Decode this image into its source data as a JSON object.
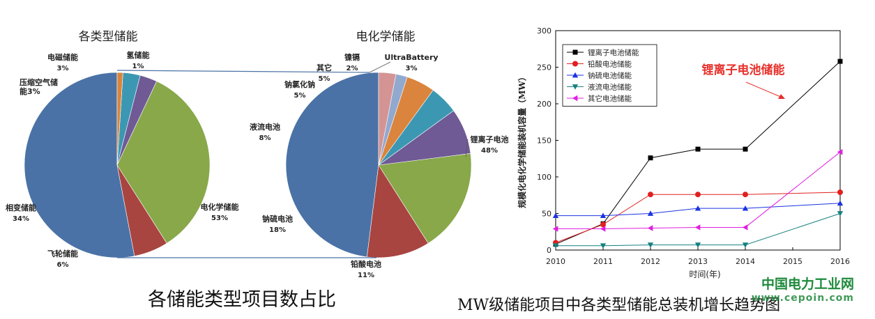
{
  "captions": {
    "left": "各储能类型项目数占比",
    "right": "MW级储能项目中各类型储能总装机增长趋势图"
  },
  "watermark": {
    "name": "中国电力工业网",
    "url": "www.cepoin.com"
  },
  "colors": {
    "blue": "#4A72A6",
    "red": "#A84541",
    "green": "#88A84A",
    "purple": "#6F5A96",
    "teal": "#3C98B2",
    "orange": "#DB843D",
    "lightblue": "#92A9CF",
    "pink": "#D49494",
    "connector": "#4A72A6",
    "annotation_red": "#E8302A"
  },
  "chart_data": [
    {
      "type": "pie",
      "title": "各类型储能",
      "slices": [
        {
          "label": "电化学储能",
          "value": 53,
          "text": "53%",
          "color": "#4A72A6"
        },
        {
          "label": "飞轮储能",
          "value": 6,
          "text": "6%",
          "color": "#A84541"
        },
        {
          "label": "相变储能",
          "value": 34,
          "text": "34%",
          "color": "#88A84A"
        },
        {
          "label": "压缩空气储能",
          "value": 3,
          "text": "3%",
          "color": "#6F5A96"
        },
        {
          "label": "电磁储能",
          "value": 3,
          "text": "3%",
          "color": "#3C98B2"
        },
        {
          "label": "氢储能",
          "value": 1,
          "text": "1%",
          "color": "#DB843D"
        }
      ]
    },
    {
      "type": "pie",
      "title": "电化学储能",
      "slices": [
        {
          "label": "锂离子电池",
          "value": 48,
          "text": "48%",
          "color": "#4A72A6"
        },
        {
          "label": "铅酸电池",
          "value": 11,
          "text": "11%",
          "color": "#A84541"
        },
        {
          "label": "钠硫电池",
          "value": 18,
          "text": "18%",
          "color": "#88A84A"
        },
        {
          "label": "液流电池",
          "value": 8,
          "text": "8%",
          "color": "#6F5A96"
        },
        {
          "label": "钠氯化钠",
          "value": 5,
          "text": "5%",
          "color": "#3C98B2"
        },
        {
          "label": "其它",
          "value": 5,
          "text": "5%",
          "color": "#DB843D"
        },
        {
          "label": "镍镉",
          "value": 2,
          "text": "2%",
          "color": "#92A9CF"
        },
        {
          "label": "UltraBattery",
          "value": 3,
          "text": "3%",
          "color": "#D49494"
        }
      ]
    },
    {
      "type": "line",
      "title": "",
      "xlabel": "时间(年)",
      "ylabel": "规模化电化学储能装机容量（MW）",
      "x": [
        2010,
        2011,
        2012,
        2013,
        2014,
        2015,
        2016
      ],
      "xlim": [
        2010,
        2016
      ],
      "ylim": [
        0,
        300
      ],
      "yticks": [
        0,
        50,
        100,
        150,
        200,
        250,
        300
      ],
      "legend_position": "top-left",
      "grid": false,
      "annotation": "锂离子电池储能",
      "series": [
        {
          "name": "锂离子电池储能",
          "marker": "square",
          "color": "#000000",
          "points": [
            [
              2010,
              8
            ],
            [
              2011,
              36
            ],
            [
              2012,
              126
            ],
            [
              2013,
              138
            ],
            [
              2014,
              138
            ],
            [
              2016,
              258
            ]
          ]
        },
        {
          "name": "铅酸电池储能",
          "marker": "circle",
          "color": "#E02020",
          "points": [
            [
              2010,
              10
            ],
            [
              2011,
              35
            ],
            [
              2012,
              76
            ],
            [
              2013,
              76
            ],
            [
              2014,
              76
            ],
            [
              2016,
              79
            ]
          ]
        },
        {
          "name": "钠硫电池储能",
          "marker": "triangle-up",
          "color": "#1A33E0",
          "points": [
            [
              2010,
              47
            ],
            [
              2011,
              47
            ],
            [
              2012,
              50
            ],
            [
              2013,
              57
            ],
            [
              2014,
              57
            ],
            [
              2016,
              64
            ]
          ]
        },
        {
          "name": "液流电池储能",
          "marker": "triangle-down",
          "color": "#178080",
          "points": [
            [
              2010,
              6
            ],
            [
              2011,
              6
            ],
            [
              2012,
              7
            ],
            [
              2013,
              7
            ],
            [
              2014,
              7
            ],
            [
              2016,
              50
            ]
          ]
        },
        {
          "name": "其它电池储能",
          "marker": "triangle-left",
          "color": "#E020E0",
          "points": [
            [
              2010,
              29
            ],
            [
              2011,
              29
            ],
            [
              2012,
              30
            ],
            [
              2013,
              31
            ],
            [
              2014,
              31
            ],
            [
              2016,
              134
            ]
          ]
        }
      ]
    }
  ]
}
